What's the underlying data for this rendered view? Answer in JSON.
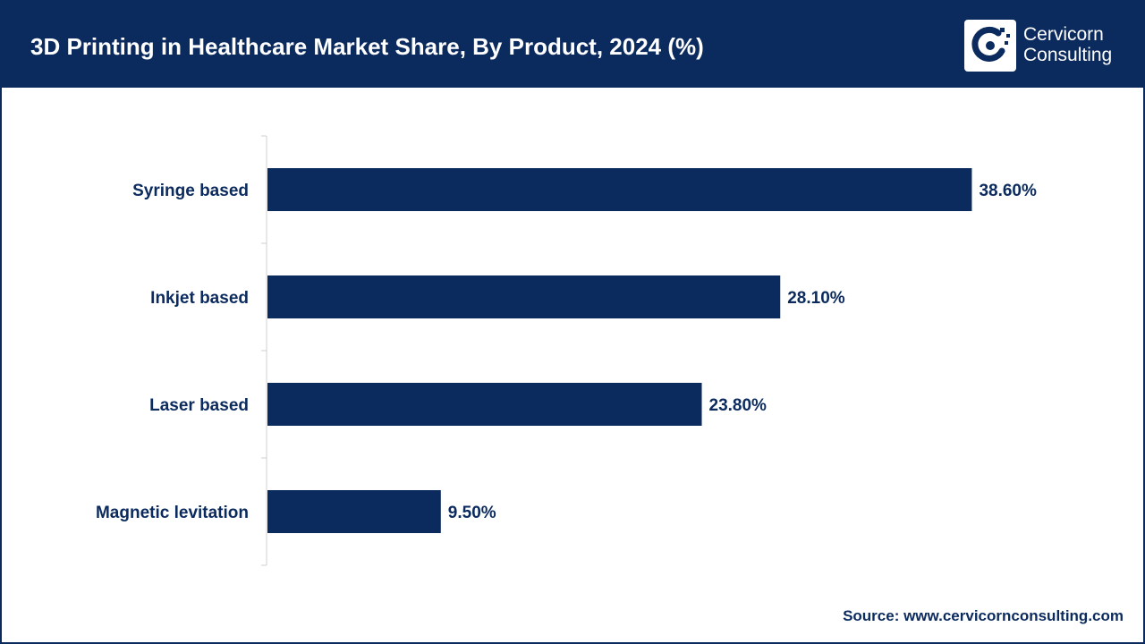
{
  "header": {
    "title": "3D Printing in Healthcare Market Share, By Product, 2024 (%)"
  },
  "logo": {
    "line1": "Cervicorn",
    "line2": "Consulting",
    "icon": "cervicorn-logo-icon"
  },
  "footer": {
    "source": "Source: www.cervicornconsulting.com"
  },
  "colors": {
    "brand": "#0b2a5e",
    "bar": "#0b2a5e",
    "axis": "#d0d0d0"
  },
  "chart_data": {
    "type": "bar",
    "orientation": "horizontal",
    "title": "3D Printing in Healthcare Market Share, By Product, 2024 (%)",
    "categories": [
      "Syringe based",
      "Inkjet based",
      "Laser based",
      "Magnetic levitation"
    ],
    "values": [
      38.6,
      28.1,
      23.8,
      9.5
    ],
    "value_labels": [
      "38.60%",
      "28.10%",
      "23.80%",
      "9.50%"
    ],
    "unit": "%",
    "grid": false,
    "legend": "none"
  }
}
